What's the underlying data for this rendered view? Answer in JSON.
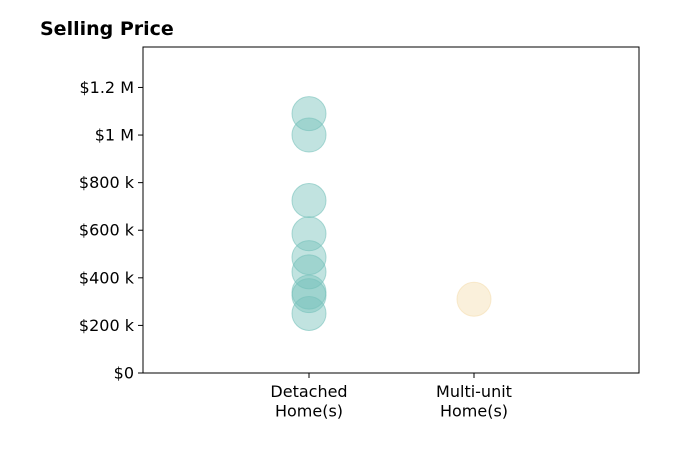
{
  "chart_data": {
    "type": "scatter",
    "title": "Selling Price",
    "xlabel": "",
    "ylabel": "",
    "categories": [
      [
        "Detached",
        "Home(s)"
      ],
      [
        "Multi-unit",
        "Home(s)"
      ]
    ],
    "ylim": [
      0,
      1370000
    ],
    "yticks": [
      0,
      200000,
      400000,
      600000,
      800000,
      1000000,
      1200000
    ],
    "ytick_labels": [
      "$0",
      "$200 k",
      "$400 k",
      "$600 k",
      "$800 k",
      "$1 M",
      "$1.2 M"
    ],
    "grid": false,
    "legend": "none",
    "series": [
      {
        "category": 0,
        "color": "#76c2bb",
        "values": [
          1090000,
          1000000,
          725000,
          585000,
          485000,
          425000,
          340000,
          325000,
          250000
        ]
      },
      {
        "category": 1,
        "color": "#f5deb0",
        "values": [
          310000
        ]
      }
    ]
  }
}
